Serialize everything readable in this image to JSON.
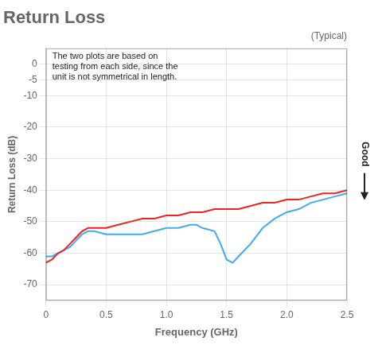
{
  "chart_data": {
    "type": "line",
    "title": "Return Loss",
    "subtitle": "(Typical)",
    "x_label": "Frequency (GHz)",
    "y_label": "Return Loss (dB)",
    "annotations": [
      "The two plots are based on\ntesting from each side, since the\nunit is not symmetrical in length.",
      "Good"
    ],
    "xlim": [
      0,
      2.5
    ],
    "ylim": [
      -75,
      5
    ],
    "xticks": [
      0,
      0.5,
      {
        "value": 1.0,
        "label": "1.0"
      },
      1.5,
      {
        "value": 2.0,
        "label": "2.0"
      },
      2.5
    ],
    "yticks": [
      0,
      -5,
      -10,
      -20,
      -30,
      -40,
      -50,
      -60,
      -70
    ],
    "grid": true,
    "series": [
      {
        "color": "#ee2222",
        "x": [
          0.0,
          0.05,
          0.1,
          0.15,
          0.2,
          0.25,
          0.3,
          0.35,
          0.4,
          0.5,
          0.6,
          0.7,
          0.8,
          0.9,
          1.0,
          1.1,
          1.2,
          1.3,
          1.4,
          1.5,
          1.6,
          1.7,
          1.8,
          1.9,
          2.0,
          2.1,
          2.2,
          2.3,
          2.4,
          2.5
        ],
        "values": [
          -63,
          -62,
          -60,
          -59,
          -57,
          -55,
          -53,
          -52,
          -52,
          -52,
          -51,
          -50,
          -49,
          -49,
          -48,
          -48,
          -47,
          -47,
          -46,
          -46,
          -46,
          -45,
          -44,
          -44,
          -43,
          -43,
          -42,
          -41,
          -41,
          -40
        ]
      },
      {
        "color": "#44aaee",
        "x": [
          0.0,
          0.05,
          0.1,
          0.15,
          0.2,
          0.25,
          0.3,
          0.35,
          0.4,
          0.5,
          0.6,
          0.7,
          0.8,
          0.9,
          1.0,
          1.1,
          1.2,
          1.25,
          1.3,
          1.4,
          1.45,
          1.5,
          1.55,
          1.6,
          1.65,
          1.7,
          1.8,
          1.9,
          2.0,
          2.1,
          2.2,
          2.3,
          2.4,
          2.5
        ],
        "values": [
          -61,
          -61,
          -60,
          -59,
          -58,
          -56,
          -54,
          -53,
          -53,
          -54,
          -54,
          -54,
          -54,
          -53,
          -52,
          -52,
          -51,
          -51,
          -52,
          -53,
          -57,
          -62,
          -63,
          -61,
          -59,
          -57,
          -52,
          -49,
          -47,
          -46,
          -44,
          -43,
          -42,
          -41
        ]
      }
    ]
  }
}
